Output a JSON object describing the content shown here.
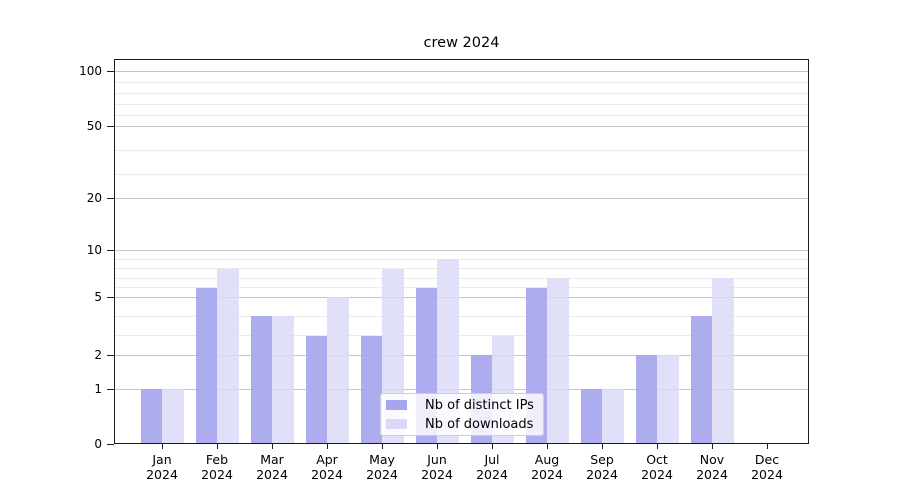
{
  "title": "crew 2024",
  "chart_data": {
    "type": "bar",
    "title": "crew 2024",
    "categories": [
      "Jan 2024",
      "Feb 2024",
      "Mar 2024",
      "Apr 2024",
      "May 2024",
      "Jun 2024",
      "Jul 2024",
      "Aug 2024",
      "Sep 2024",
      "Oct 2024",
      "Nov 2024",
      "Dec 2024"
    ],
    "series": [
      {
        "name": "Nb of distinct IPs",
        "color": "#a6a6ee",
        "values": [
          1,
          6,
          4,
          3,
          3,
          6,
          2,
          6,
          1,
          2,
          4,
          0
        ]
      },
      {
        "name": "Nb of downloads",
        "color": "#d9d9f6",
        "values": [
          1,
          8,
          4,
          5,
          8,
          9,
          3,
          7,
          1,
          2,
          7,
          0
        ]
      }
    ],
    "xlabel": "",
    "ylabel": "",
    "yscale": "quasi-log (0 baseline, compressed decades)",
    "ylim": [
      0,
      130
    ],
    "yticks": [
      0,
      1,
      2,
      5,
      10,
      20,
      50,
      100
    ],
    "ytick_labels": [
      "0",
      "1",
      "2",
      "5",
      "10",
      "20",
      "50",
      "100"
    ],
    "minor_yticks": [
      3,
      4,
      6,
      7,
      8,
      9,
      30,
      40,
      60,
      70,
      80,
      90
    ],
    "grid": "horizontal major + minor",
    "legend_position": "lower center"
  },
  "legend": {
    "items": [
      {
        "label": "Nb of distinct IPs",
        "swatch_color": "#a6a6ee"
      },
      {
        "label": "Nb of downloads",
        "swatch_color": "#d9d9f6"
      }
    ]
  },
  "colors": {
    "background": "#ffffff",
    "bar_ips": "#a6a6ee",
    "bar_downloads": "#d9d9f6",
    "grid_major": "#c6c6c6",
    "grid_minor": "#ececec",
    "spine": "#1a1a1a",
    "legend_border": "#cfcfcf",
    "text": "#000000"
  }
}
